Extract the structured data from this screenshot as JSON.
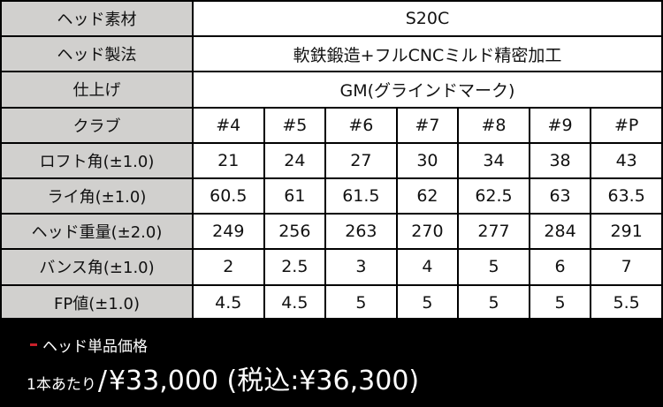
{
  "spec": {
    "material": {
      "label": "ヘッド素材",
      "value": "S20C"
    },
    "method": {
      "label": "ヘッド製法",
      "value": "軟鉄鍛造+フルCNCミルド精密加工"
    },
    "finish": {
      "label": "仕上げ",
      "value": "GM(グラインドマーク)"
    },
    "rows": [
      {
        "label": "クラブ",
        "values": [
          "#4",
          "#5",
          "#6",
          "#7",
          "#8",
          "#9",
          "#P"
        ]
      },
      {
        "label": "ロフト角(±1.0)",
        "values": [
          "21",
          "24",
          "27",
          "30",
          "34",
          "38",
          "43"
        ]
      },
      {
        "label": "ライ角(±1.0)",
        "values": [
          "60.5",
          "61",
          "61.5",
          "62",
          "62.5",
          "63",
          "63.5"
        ]
      },
      {
        "label": "ヘッド重量(±2.0)",
        "values": [
          "249",
          "256",
          "263",
          "270",
          "277",
          "284",
          "291"
        ]
      },
      {
        "label": "バンス角(±1.0)",
        "values": [
          "2",
          "2.5",
          "3",
          "4",
          "5",
          "6",
          "7"
        ]
      },
      {
        "label": "FP値(±1.0)",
        "values": [
          "4.5",
          "4.5",
          "5",
          "5",
          "5",
          "5",
          "5.5"
        ]
      }
    ]
  },
  "price": {
    "heading": "ヘッド単品価格",
    "per": "1本あたり",
    "slash": "/",
    "value": "¥33,000 (税込:¥36,300)",
    "accent": "#c8202a"
  }
}
